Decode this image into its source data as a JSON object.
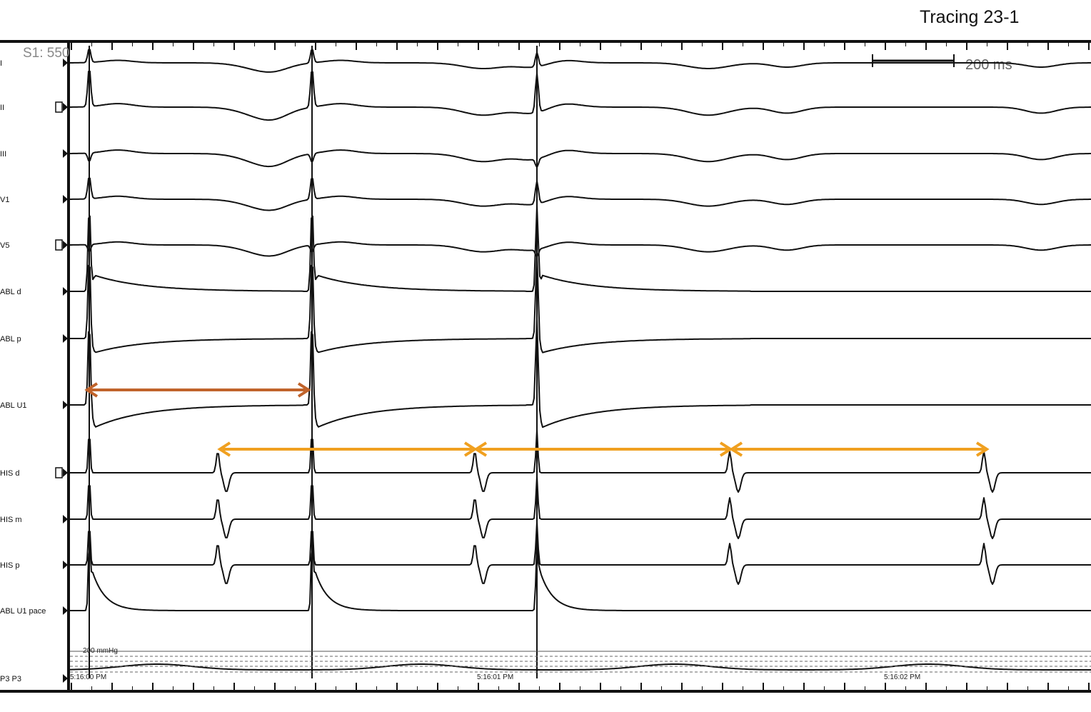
{
  "title": "Tracing 23-1",
  "protocol_label": "S1: 550",
  "scale_bar_label": "200 ms",
  "pressure_label": "200 mmHg",
  "time_marks": [
    "5:16:00 PM",
    "5:16:01 PM",
    "5:16:02 PM"
  ],
  "leads": [
    {
      "label": "I"
    },
    {
      "label": "II"
    },
    {
      "label": "III"
    },
    {
      "label": "V1"
    },
    {
      "label": "V5"
    },
    {
      "label": "ABL d"
    },
    {
      "label": "ABL p"
    },
    {
      "label": "ABL U1"
    },
    {
      "label": "HIS d"
    },
    {
      "label": "HIS m"
    },
    {
      "label": "HIS p"
    },
    {
      "label": "ABL U1 pace"
    },
    {
      "label": "P3 P3"
    }
  ],
  "colors": {
    "pacing_interval_arrow": "#c0632b",
    "his_interval_arrow": "#f0a020",
    "trace": "#111111"
  }
}
